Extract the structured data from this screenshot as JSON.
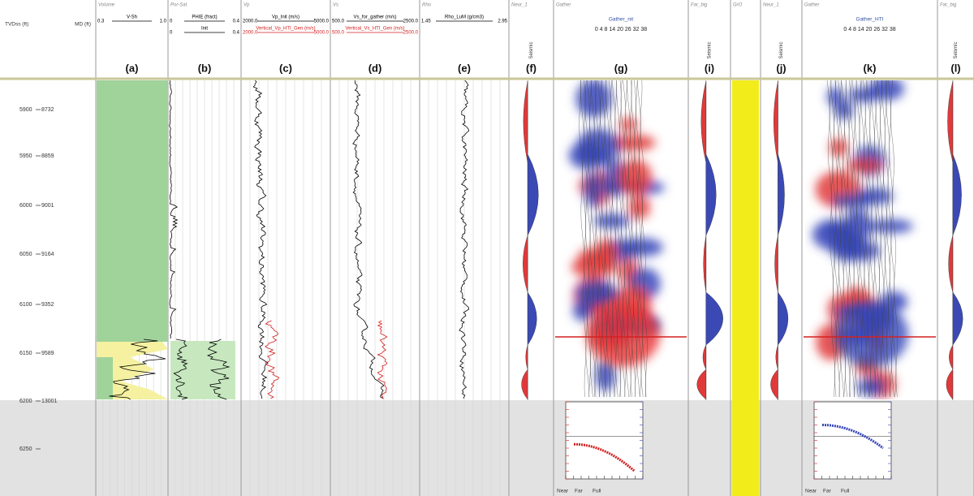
{
  "depth_header": {
    "tvd": "TVDss (ft)",
    "md": "MD (ft)"
  },
  "depths": [
    {
      "tvd": "5900",
      "md": "8732"
    },
    {
      "tvd": "5950",
      "md": "8859"
    },
    {
      "tvd": "6000",
      "md": "9001"
    },
    {
      "tvd": "6050",
      "md": "9164"
    },
    {
      "tvd": "6100",
      "md": "9352"
    },
    {
      "tvd": "6150",
      "md": "9589"
    },
    {
      "tvd": "6200",
      "md": "13001"
    },
    {
      "tvd": "6250"
    }
  ],
  "tracks": [
    {
      "title": "Volume",
      "curves": [
        {
          "name": "V-Sh",
          "min": "0.3",
          "max": "1.0",
          "color": "#000000"
        }
      ],
      "label": "(a)"
    },
    {
      "title": "Por-Sat",
      "curves": [
        {
          "name": "PHIE (fract)",
          "min": "0",
          "max": "0.4",
          "color": "#000000"
        },
        {
          "name": "Init",
          "min": "0",
          "max": "0.4",
          "color": "#000000"
        }
      ],
      "label": "(b)"
    },
    {
      "title": "Vp",
      "curves": [
        {
          "name": "Vp_Init (m/s)",
          "min": "2000.0",
          "max": "5000.0",
          "color": "#000000"
        },
        {
          "name": "Vertical_Vp_HTI_Gen (m/s)",
          "min": "2000.0",
          "max": "5000.0",
          "color": "#d42020"
        }
      ],
      "label": "(c)"
    },
    {
      "title": "Vs",
      "curves": [
        {
          "name": "Vs_for_gather (m/s)",
          "min": "500.0",
          "max": "2500.0",
          "color": "#000000"
        },
        {
          "name": "Vertical_Vs_HTI_Gen (m/s)",
          "min": "500.0",
          "max": "2500.0",
          "color": "#d42020"
        }
      ],
      "label": "(d)"
    },
    {
      "title": "Rho",
      "curves": [
        {
          "name": "Rho_LuM (g/cm3)",
          "min": "1.45",
          "max": "2.95",
          "color": "#000000"
        }
      ],
      "label": "(e)"
    },
    {
      "title": "Neur_1",
      "axis_label": "Seismic",
      "label": "(f)"
    },
    {
      "title": "Gather",
      "curve": "Gather_nit",
      "offsets": "0 4 8 14 20 26 32 38",
      "label": "(g)"
    },
    {
      "title": "Far_big",
      "axis_label": "Seismic",
      "label": "(i)"
    },
    {
      "title": "GrO"
    },
    {
      "title": "Neur_1",
      "axis_label": "Seismic",
      "label": "(j)"
    },
    {
      "title": "Gather",
      "curve": "Gather_HTI",
      "offsets": "0 4 8 14 20 26 32 38",
      "label": "(k)"
    },
    {
      "title": "Far_big",
      "axis_label": "Seismic",
      "label": "(l)"
    }
  ],
  "inset_legend": [
    "Near",
    "Far",
    "Full"
  ]
}
